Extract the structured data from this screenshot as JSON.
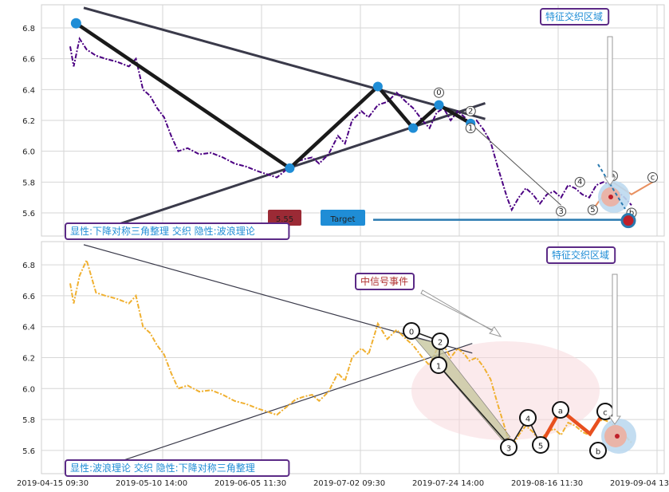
{
  "chart_data": [
    {
      "type": "line",
      "panel": "top",
      "x_ticks": [
        "2019-04-15 09:30",
        "2019-05-10 14:00",
        "2019-06-05 11:30",
        "2019-07-02 09:30",
        "2019-07-24 14:00",
        "2019-08-16 11:30",
        "2019-09-04 13:00"
      ],
      "y_ticks": [
        "6.8",
        "6.6",
        "6.4",
        "6.2",
        "6.0",
        "5.8",
        "5.6"
      ],
      "ylim": [
        5.45,
        6.95
      ],
      "grid": true,
      "price_series": {
        "color": "#4b0082",
        "points": [
          [
            0,
            6.68
          ],
          [
            3,
            6.55
          ],
          [
            8,
            6.73
          ],
          [
            14,
            6.66
          ],
          [
            22,
            6.62
          ],
          [
            30,
            6.6
          ],
          [
            40,
            6.58
          ],
          [
            50,
            6.55
          ],
          [
            56,
            6.6
          ],
          [
            62,
            6.4
          ],
          [
            68,
            6.36
          ],
          [
            74,
            6.28
          ],
          [
            80,
            6.22
          ],
          [
            86,
            6.1
          ],
          [
            92,
            6.0
          ],
          [
            100,
            6.02
          ],
          [
            110,
            5.98
          ],
          [
            120,
            5.99
          ],
          [
            130,
            5.96
          ],
          [
            140,
            5.92
          ],
          [
            150,
            5.9
          ],
          [
            160,
            5.87
          ],
          [
            168,
            5.85
          ],
          [
            176,
            5.83
          ],
          [
            184,
            5.88
          ],
          [
            192,
            5.93
          ],
          [
            200,
            5.95
          ],
          [
            206,
            5.96
          ],
          [
            212,
            5.92
          ],
          [
            220,
            5.98
          ],
          [
            228,
            6.1
          ],
          [
            234,
            6.05
          ],
          [
            240,
            6.2
          ],
          [
            248,
            6.26
          ],
          [
            254,
            6.22
          ],
          [
            262,
            6.3
          ],
          [
            270,
            6.32
          ],
          [
            278,
            6.38
          ],
          [
            286,
            6.32
          ],
          [
            292,
            6.28
          ],
          [
            300,
            6.2
          ],
          [
            306,
            6.15
          ],
          [
            312,
            6.25
          ],
          [
            318,
            6.28
          ],
          [
            324,
            6.2
          ],
          [
            330,
            6.26
          ],
          [
            336,
            6.22
          ],
          [
            340,
            6.18
          ],
          [
            346,
            6.2
          ],
          [
            352,
            6.14
          ],
          [
            358,
            6.06
          ],
          [
            364,
            5.9
          ],
          [
            368,
            5.8
          ],
          [
            372,
            5.7
          ],
          [
            376,
            5.62
          ],
          [
            382,
            5.7
          ],
          [
            388,
            5.76
          ],
          [
            394,
            5.72
          ],
          [
            400,
            5.66
          ],
          [
            406,
            5.72
          ],
          [
            412,
            5.74
          ],
          [
            418,
            5.7
          ],
          [
            424,
            5.78
          ],
          [
            430,
            5.76
          ],
          [
            436,
            5.72
          ],
          [
            442,
            5.7
          ],
          [
            448,
            5.78
          ],
          [
            454,
            5.8
          ],
          [
            460,
            5.78
          ],
          [
            466,
            5.74
          ],
          [
            472,
            5.7
          ],
          [
            478,
            5.65
          ]
        ]
      },
      "triangle_upper": [
        [
          0,
          6.93
        ],
        [
          331,
          6.22
        ]
      ],
      "triangle_lower": [
        [
          0,
          5.52
        ],
        [
          331,
          6.26
        ]
      ],
      "zigzag": [
        [
          5,
          6.83
        ],
        [
          187,
          5.89
        ],
        [
          262,
          6.42
        ],
        [
          292,
          6.15
        ],
        [
          314,
          6.3
        ],
        [
          341,
          6.18
        ]
      ],
      "arrow_projection": [
        [
          341,
          6.18
        ],
        [
          418,
          5.65
        ]
      ],
      "wave_labels": [
        {
          "text": "0",
          "x": 314,
          "y": 6.38
        },
        {
          "text": "1",
          "x": 341,
          "y": 6.15
        },
        {
          "text": "2",
          "x": 341,
          "y": 6.26
        },
        {
          "text": "3",
          "x": 418,
          "y": 5.61
        },
        {
          "text": "4",
          "x": 434,
          "y": 5.8
        },
        {
          "text": "5",
          "x": 445,
          "y": 5.62
        },
        {
          "text": "a",
          "x": 462,
          "y": 5.84
        },
        {
          "text": "b",
          "x": 478,
          "y": 5.6
        },
        {
          "text": "c",
          "x": 496,
          "y": 5.83
        }
      ],
      "target_value": 5.55,
      "annotations": {
        "price_tag": "5.55",
        "target_tag": "Target",
        "region_label": "特征交织区域",
        "legend": "显性:下降对称三角整理 交织 隐性:波浪理论"
      }
    },
    {
      "type": "line",
      "panel": "bottom",
      "x_ticks": [
        "2019-04-15 09:30",
        "2019-05-10 14:00",
        "2019-06-05 11:30",
        "2019-07-02 09:30",
        "2019-07-24 14:00",
        "2019-08-16 11:30",
        "2019-09-04 13:00"
      ],
      "y_ticks": [
        "6.8",
        "6.6",
        "6.4",
        "6.2",
        "6.0",
        "5.8",
        "5.6"
      ],
      "ylim": [
        5.45,
        6.95
      ],
      "grid": true,
      "price_series": {
        "color": "#f0b030",
        "points": [
          [
            0,
            6.68
          ],
          [
            3,
            6.55
          ],
          [
            8,
            6.73
          ],
          [
            14,
            6.83
          ],
          [
            22,
            6.62
          ],
          [
            30,
            6.6
          ],
          [
            40,
            6.58
          ],
          [
            50,
            6.55
          ],
          [
            56,
            6.6
          ],
          [
            62,
            6.4
          ],
          [
            68,
            6.36
          ],
          [
            74,
            6.28
          ],
          [
            80,
            6.22
          ],
          [
            86,
            6.1
          ],
          [
            92,
            6.0
          ],
          [
            100,
            6.02
          ],
          [
            110,
            5.98
          ],
          [
            120,
            5.99
          ],
          [
            130,
            5.96
          ],
          [
            140,
            5.92
          ],
          [
            150,
            5.9
          ],
          [
            160,
            5.87
          ],
          [
            168,
            5.85
          ],
          [
            176,
            5.83
          ],
          [
            184,
            5.88
          ],
          [
            192,
            5.93
          ],
          [
            200,
            5.95
          ],
          [
            206,
            5.96
          ],
          [
            212,
            5.92
          ],
          [
            220,
            5.98
          ],
          [
            228,
            6.1
          ],
          [
            234,
            6.05
          ],
          [
            240,
            6.2
          ],
          [
            248,
            6.26
          ],
          [
            254,
            6.22
          ],
          [
            262,
            6.42
          ],
          [
            270,
            6.32
          ],
          [
            278,
            6.38
          ],
          [
            286,
            6.32
          ],
          [
            292,
            6.28
          ],
          [
            300,
            6.2
          ],
          [
            306,
            6.15
          ],
          [
            312,
            6.25
          ],
          [
            318,
            6.28
          ],
          [
            324,
            6.2
          ],
          [
            330,
            6.26
          ],
          [
            336,
            6.22
          ],
          [
            340,
            6.18
          ],
          [
            346,
            6.2
          ],
          [
            352,
            6.14
          ],
          [
            358,
            6.06
          ],
          [
            364,
            5.9
          ],
          [
            368,
            5.8
          ],
          [
            372,
            5.7
          ],
          [
            376,
            5.62
          ],
          [
            382,
            5.7
          ],
          [
            388,
            5.76
          ],
          [
            394,
            5.72
          ],
          [
            400,
            5.66
          ],
          [
            406,
            5.72
          ],
          [
            412,
            5.74
          ],
          [
            418,
            5.7
          ],
          [
            424,
            5.78
          ],
          [
            430,
            5.76
          ],
          [
            436,
            5.72
          ],
          [
            442,
            5.7
          ],
          [
            448,
            5.78
          ],
          [
            454,
            5.8
          ],
          [
            460,
            5.78
          ],
          [
            466,
            5.74
          ],
          [
            472,
            5.7
          ],
          [
            478,
            5.65
          ]
        ]
      },
      "triangle_upper": [
        [
          0,
          6.93
        ],
        [
          320,
          6.24
        ]
      ],
      "triangle_lower": [
        [
          0,
          5.52
        ],
        [
          320,
          6.24
        ]
      ],
      "wave_labels": [
        {
          "text": "0",
          "x": 302,
          "y": 6.37
        },
        {
          "text": "1",
          "x": 320,
          "y": 6.14
        },
        {
          "text": "2",
          "x": 320,
          "y": 6.3
        },
        {
          "text": "3",
          "x": 370,
          "y": 5.56
        },
        {
          "text": "4",
          "x": 384,
          "y": 5.78
        },
        {
          "text": "5",
          "x": 396,
          "y": 5.56
        },
        {
          "text": "a",
          "x": 410,
          "y": 5.84
        },
        {
          "text": "b",
          "x": 442,
          "y": 5.54
        },
        {
          "text": "c",
          "x": 456,
          "y": 5.84
        }
      ],
      "annotations": {
        "signal_label": "中信号事件",
        "region_label": "特征交织区域",
        "legend": "显性:波浪理论 交织 隐性:下降对称三角整理"
      }
    }
  ],
  "colors": {
    "zigzag": "#1a1a1a",
    "node": "#1f8dd6",
    "triangle": "#3a3a4a",
    "target_arrow": "#2a7ab0",
    "price_tag_bg": "#9b2a35",
    "target_tag_bg": "#1f8dd6",
    "label_text": "#1f8dd6",
    "signal_text": "#b03030",
    "box_border": "#5b2a86",
    "wave_orange": "#e8501f"
  }
}
